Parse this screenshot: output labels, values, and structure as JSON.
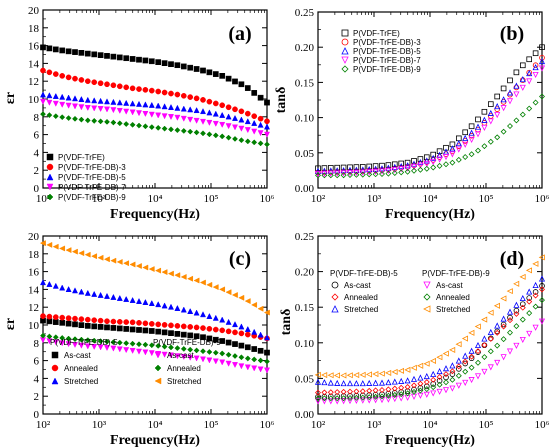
{
  "chart_data": [
    {
      "panel": "a",
      "type": "scatter",
      "panel_label": "(a)",
      "xlabel": "Frequency(Hz)",
      "ylabel": "εr",
      "xscale": "log",
      "xlim": [
        100,
        1000000
      ],
      "ylim": [
        0,
        20
      ],
      "x_ticks": [
        "10²",
        "10³",
        "10⁴",
        "10⁵",
        "10⁶"
      ],
      "y_ticks": [
        "0",
        "2",
        "4",
        "6",
        "8",
        "10",
        "12",
        "14",
        "16",
        "18",
        "20"
      ],
      "legend_position": "bottom-left",
      "series": [
        {
          "name": "P(VDF-TrFE)",
          "color": "#000000",
          "marker": "square",
          "filled": true,
          "values": [
            15.8,
            15.4,
            15.1,
            14.8,
            14.5,
            14.2,
            13.8,
            13.3,
            12.6,
            11.5,
            9.6
          ]
        },
        {
          "name": "P(VDF-TrFE-DB)-3",
          "color": "#ff0000",
          "marker": "circle",
          "filled": true,
          "values": [
            13.2,
            12.5,
            12.0,
            11.6,
            11.2,
            10.9,
            10.5,
            10.0,
            9.3,
            8.5,
            7.5
          ]
        },
        {
          "name": "P(VDF-TrFE-DB)-5",
          "color": "#0000ff",
          "marker": "triangle-up",
          "filled": true,
          "values": [
            10.5,
            10.2,
            9.9,
            9.7,
            9.5,
            9.3,
            9.0,
            8.7,
            8.2,
            7.6,
            6.9
          ]
        },
        {
          "name": "P(VDF-TrFE-DB)-7",
          "color": "#ff00ff",
          "marker": "triangle-down",
          "filled": true,
          "values": [
            9.7,
            9.3,
            9.0,
            8.8,
            8.5,
            8.2,
            7.9,
            7.5,
            7.1,
            6.6,
            6.0
          ]
        },
        {
          "name": "P(VDF-TrFE-DB)-9",
          "color": "#008000",
          "marker": "diamond",
          "filled": true,
          "values": [
            8.3,
            7.9,
            7.6,
            7.4,
            7.1,
            6.8,
            6.5,
            6.2,
            5.8,
            5.3,
            4.9
          ]
        }
      ]
    },
    {
      "panel": "b",
      "type": "scatter",
      "panel_label": "(b)",
      "xlabel": "Frequency(Hz)",
      "ylabel": "tanδ",
      "xscale": "log",
      "xlim": [
        100,
        1000000
      ],
      "ylim": [
        0,
        0.25
      ],
      "x_ticks": [
        "10²",
        "10³",
        "10⁴",
        "10⁵",
        "10⁶"
      ],
      "y_ticks": [
        "0.00",
        "0.05",
        "0.10",
        "0.15",
        "0.20",
        "0.25"
      ],
      "legend_position": "top-left",
      "series": [
        {
          "name": "P(VDF-TrFE)",
          "color": "#000000",
          "marker": "square",
          "filled": false,
          "values": [
            0.028,
            0.029,
            0.03,
            0.032,
            0.036,
            0.045,
            0.062,
            0.092,
            0.13,
            0.17,
            0.2
          ]
        },
        {
          "name": "P(VDF-TrFE-DB)-3",
          "color": "#ff0000",
          "marker": "circle",
          "filled": false,
          "values": [
            0.022,
            0.023,
            0.024,
            0.026,
            0.03,
            0.038,
            0.052,
            0.078,
            0.112,
            0.148,
            0.185
          ]
        },
        {
          "name": "P(VDF-TrFE-DB)-5",
          "color": "#0000ff",
          "marker": "triangle-up",
          "filled": false,
          "values": [
            0.024,
            0.025,
            0.026,
            0.028,
            0.032,
            0.04,
            0.056,
            0.082,
            0.116,
            0.15,
            0.18
          ]
        },
        {
          "name": "P(VDF-TrFE-DB)-7",
          "color": "#ff00ff",
          "marker": "triangle-down",
          "filled": false,
          "values": [
            0.02,
            0.021,
            0.022,
            0.024,
            0.028,
            0.035,
            0.048,
            0.072,
            0.104,
            0.138,
            0.17
          ]
        },
        {
          "name": "P(VDF-TrFE-DB)-9",
          "color": "#008000",
          "marker": "diamond",
          "filled": false,
          "values": [
            0.018,
            0.018,
            0.019,
            0.02,
            0.023,
            0.028,
            0.036,
            0.05,
            0.072,
            0.1,
            0.13
          ]
        }
      ]
    },
    {
      "panel": "c",
      "type": "scatter",
      "panel_label": "(c)",
      "xlabel": "Frequency(Hz)",
      "ylabel": "εr",
      "xscale": "log",
      "xlim": [
        100,
        1000000
      ],
      "ylim": [
        0,
        20
      ],
      "x_ticks": [
        "10²",
        "10³",
        "10⁴",
        "10⁵",
        "10⁶"
      ],
      "y_ticks": [
        "0",
        "2",
        "4",
        "6",
        "8",
        "10",
        "12",
        "14",
        "16",
        "18",
        "20"
      ],
      "legend_position": "bottom-left",
      "legend_groups": [
        "P(VDF-TrFE-DB)-5",
        "P(VDF-TrFE-DB)-9"
      ],
      "series": [
        {
          "group": "P(VDF-TrFE-DB)-5",
          "name": "As-cast",
          "color": "#000000",
          "marker": "square",
          "filled": true,
          "values": [
            10.5,
            10.2,
            9.9,
            9.7,
            9.5,
            9.3,
            9.0,
            8.7,
            8.2,
            7.6,
            6.9
          ]
        },
        {
          "group": "P(VDF-TrFE-DB)-5",
          "name": "Annealed",
          "color": "#ff0000",
          "marker": "circle",
          "filled": true,
          "values": [
            11.0,
            10.8,
            10.6,
            10.4,
            10.3,
            10.1,
            9.9,
            9.7,
            9.4,
            9.0,
            8.5
          ]
        },
        {
          "group": "P(VDF-TrFE-DB)-5",
          "name": "Stretched",
          "color": "#0000ff",
          "marker": "triangle-up",
          "filled": true,
          "values": [
            14.8,
            14.1,
            13.6,
            13.2,
            12.8,
            12.4,
            11.9,
            11.3,
            10.6,
            9.7,
            8.6
          ]
        },
        {
          "group": "P(VDF-TrFE-DB)-9",
          "name": "As-cast",
          "color": "#ff00ff",
          "marker": "triangle-down",
          "filled": true,
          "values": [
            8.3,
            7.9,
            7.6,
            7.4,
            7.1,
            6.8,
            6.5,
            6.2,
            5.8,
            5.3,
            4.9
          ]
        },
        {
          "group": "P(VDF-TrFE-DB)-9",
          "name": "Annealed",
          "color": "#008000",
          "marker": "diamond",
          "filled": true,
          "values": [
            8.8,
            8.5,
            8.3,
            8.1,
            7.9,
            7.7,
            7.4,
            7.1,
            6.8,
            6.3,
            5.9
          ]
        },
        {
          "group": "P(VDF-TrFE-DB)-9",
          "name": "Stretched",
          "color": "#ff8c00",
          "marker": "triangle-left",
          "filled": true,
          "values": [
            19.2,
            18.5,
            17.9,
            17.3,
            16.8,
            16.2,
            15.6,
            14.9,
            14.0,
            12.9,
            11.4
          ]
        }
      ]
    },
    {
      "panel": "d",
      "type": "scatter",
      "panel_label": "(d)",
      "xlabel": "Frequency(Hz)",
      "ylabel": "tanδ",
      "xscale": "log",
      "xlim": [
        100,
        1000000
      ],
      "ylim": [
        0,
        0.25
      ],
      "x_ticks": [
        "10²",
        "10³",
        "10⁴",
        "10⁵",
        "10⁶"
      ],
      "y_ticks": [
        "0.00",
        "0.05",
        "0.10",
        "0.15",
        "0.20",
        "0.25"
      ],
      "legend_position": "top-left",
      "legend_groups": [
        "P(VDF-TrFE-DB)-5",
        "P(VDF-TrFE-DB)-9"
      ],
      "series": [
        {
          "group": "P(VDF-TrFE-DB)-5",
          "name": "As-cast",
          "color": "#000000",
          "marker": "circle",
          "filled": false,
          "values": [
            0.024,
            0.025,
            0.026,
            0.028,
            0.032,
            0.04,
            0.056,
            0.082,
            0.116,
            0.15,
            0.18
          ]
        },
        {
          "group": "P(VDF-TrFE-DB)-5",
          "name": "Annealed",
          "color": "#ff0000",
          "marker": "diamond",
          "filled": false,
          "values": [
            0.03,
            0.031,
            0.032,
            0.034,
            0.038,
            0.046,
            0.06,
            0.084,
            0.114,
            0.145,
            0.175
          ]
        },
        {
          "group": "P(VDF-TrFE-DB)-5",
          "name": "Stretched",
          "color": "#0000ff",
          "marker": "triangle-up",
          "filled": false,
          "values": [
            0.045,
            0.043,
            0.043,
            0.044,
            0.047,
            0.054,
            0.068,
            0.092,
            0.124,
            0.158,
            0.19
          ]
        },
        {
          "group": "P(VDF-TrFE-DB)-9",
          "name": "As-cast",
          "color": "#ff00ff",
          "marker": "triangle-down",
          "filled": false,
          "values": [
            0.018,
            0.018,
            0.019,
            0.02,
            0.023,
            0.028,
            0.036,
            0.05,
            0.072,
            0.1,
            0.13
          ]
        },
        {
          "group": "P(VDF-TrFE-DB)-9",
          "name": "Annealed",
          "color": "#008000",
          "marker": "diamond",
          "filled": false,
          "values": [
            0.022,
            0.022,
            0.023,
            0.025,
            0.029,
            0.036,
            0.048,
            0.068,
            0.096,
            0.128,
            0.16
          ]
        },
        {
          "group": "P(VDF-TrFE-DB)-9",
          "name": "Stretched",
          "color": "#ff8c00",
          "marker": "triangle-left",
          "filled": false,
          "values": [
            0.055,
            0.054,
            0.055,
            0.057,
            0.062,
            0.072,
            0.09,
            0.118,
            0.152,
            0.188,
            0.22
          ]
        }
      ]
    }
  ]
}
